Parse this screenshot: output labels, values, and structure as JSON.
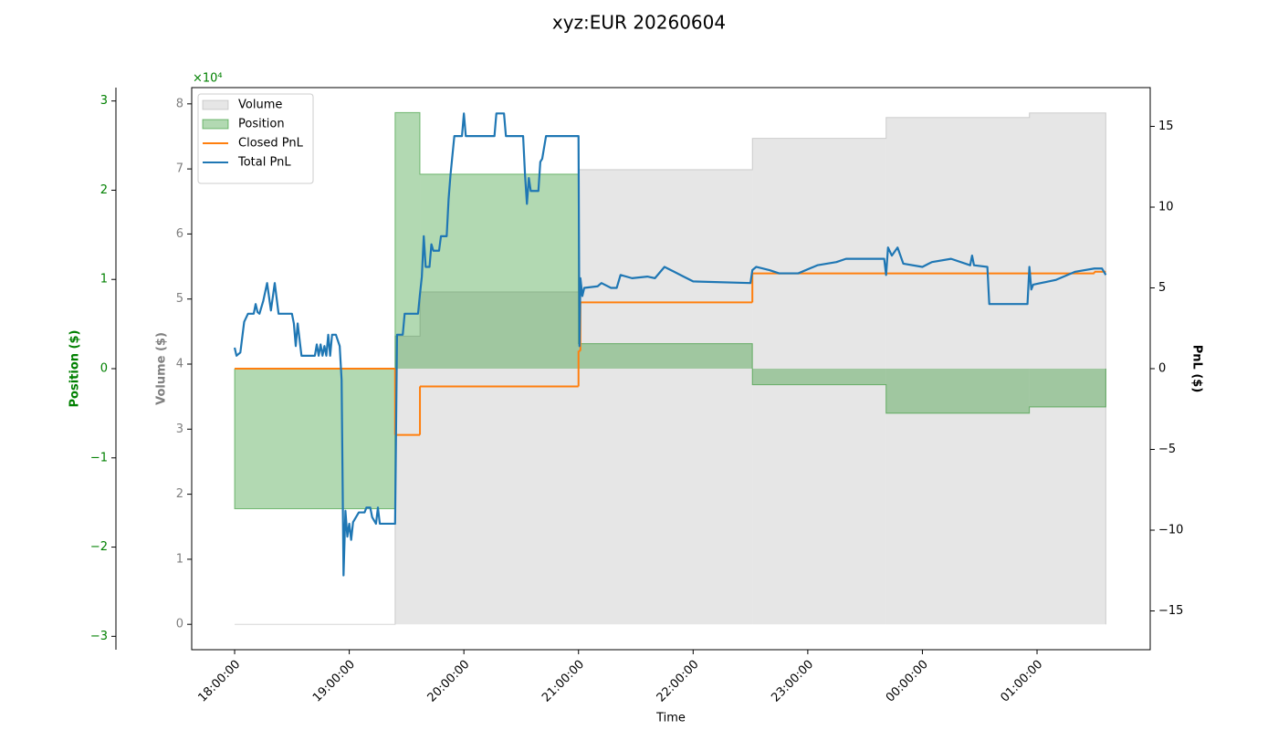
{
  "chart_data": {
    "type": "line",
    "title": "xyz:EUR 20260604",
    "x_label": "Time",
    "xlim": [
      "17:37:32",
      "01:59:14"
    ],
    "xticks": [
      "18:00:00",
      "19:00:00",
      "20:00:00",
      "21:00:00",
      "22:00:00",
      "23:00:00",
      "00:00:00",
      "01:00:00"
    ],
    "legend": "upper left",
    "axes": [
      {
        "label": "Position ($)",
        "color": "green",
        "ylim": [
          -3.15,
          3.15
        ],
        "offset_text": "×10⁴",
        "yticks": [
          {
            "value": -3,
            "label": "−3"
          },
          {
            "value": -2,
            "label": "−2"
          },
          {
            "value": -1,
            "label": "−1"
          },
          0,
          1,
          2,
          3
        ]
      },
      {
        "label": "Volume ($)",
        "color": "gray",
        "ylim": [
          -0.39,
          8.25
        ],
        "yticks": [
          0,
          1,
          2,
          3,
          4,
          5,
          6,
          7,
          8
        ]
      },
      {
        "label": "PnL ($)",
        "color": "black",
        "ylim": [
          -17.4,
          17.4
        ],
        "yticks": [
          {
            "value": -15,
            "label": "−15"
          },
          {
            "value": -10,
            "label": "−10"
          },
          {
            "value": -5,
            "label": "−5"
          },
          0,
          5,
          10,
          15
        ]
      }
    ],
    "series": [
      {
        "name": "Volume",
        "kind": "step-fill",
        "axis": 1,
        "color": "gray",
        "alpha": 0.2,
        "x": [
          "18:00:00",
          "19:24:00",
          "19:37:00",
          "21:00:00",
          "22:31:00",
          "23:41:00",
          "00:56:00",
          "01:36:00"
        ],
        "values": [
          0,
          4.43,
          5.11,
          6.99,
          7.47,
          7.79,
          7.86,
          7.86
        ]
      },
      {
        "name": "Position",
        "kind": "step-fill",
        "axis": 0,
        "color": "green",
        "alpha": 0.3,
        "x": [
          "18:00:00",
          "19:24:00",
          "19:37:00",
          "21:00:00",
          "22:31:00",
          "23:41:00",
          "00:56:00",
          "01:36:00"
        ],
        "values": [
          -1.57,
          2.87,
          2.18,
          0.28,
          -0.18,
          -0.5,
          -0.43,
          -0.43
        ]
      },
      {
        "name": "Closed PnL",
        "kind": "step-line",
        "axis": 2,
        "color": "#ff7f0e",
        "x": [
          "18:00:00",
          "19:24:00",
          "19:37:00",
          "21:00:00",
          "21:01:00",
          "22:31:00",
          "01:30:00",
          "01:36:00"
        ],
        "values": [
          0,
          -4.1,
          -1.1,
          1.1,
          4.1,
          5.9,
          6.0,
          6.0
        ]
      },
      {
        "name": "Total PnL",
        "kind": "line",
        "axis": 2,
        "color": "#1f77b4",
        "x": [
          "18:00:00",
          "18:01:00",
          "18:03:00",
          "18:05:00",
          "18:07:00",
          "18:10:00",
          "18:11:00",
          "18:12:00",
          "18:13:00",
          "18:15:00",
          "18:17:00",
          "18:19:00",
          "18:21:00",
          "18:23:00",
          "18:30:00",
          "18:31:00",
          "18:32:00",
          "18:33:00",
          "18:35:00",
          "18:42:00",
          "18:43:00",
          "18:44:00",
          "18:45:00",
          "18:46:00",
          "18:47:00",
          "18:48:00",
          "18:49:00",
          "18:50:00",
          "18:51:00",
          "18:53:00",
          "18:55:00",
          "18:56:00",
          "18:57:00",
          "18:58:00",
          "18:59:00",
          "19:00:00",
          "19:01:00",
          "19:02:00",
          "19:05:00",
          "19:08:00",
          "19:09:00",
          "19:11:00",
          "19:12:00",
          "19:14:00",
          "19:15:00",
          "19:16:00",
          "19:24:00",
          "19:25:00",
          "19:28:00",
          "19:29:00",
          "19:36:00",
          "19:37:00",
          "19:38:00",
          "19:39:00",
          "19:40:00",
          "19:42:00",
          "19:43:00",
          "19:44:00",
          "19:47:00",
          "19:48:00",
          "19:51:00",
          "19:52:00",
          "19:53:00",
          "19:55:00",
          "19:59:00",
          "20:00:00",
          "20:01:00",
          "20:16:00",
          "20:17:00",
          "20:21:00",
          "20:22:00",
          "20:31:00",
          "20:32:00",
          "20:33:00",
          "20:34:00",
          "20:35:00",
          "20:39:00",
          "20:40:00",
          "20:41:00",
          "20:43:00",
          "21:00:00",
          "21:00:30",
          "21:01:00",
          "21:02:00",
          "21:03:00",
          "21:10:00",
          "21:12:00",
          "21:17:00",
          "21:20:00",
          "21:22:00",
          "21:28:00",
          "21:36:00",
          "21:40:00",
          "21:45:00",
          "21:50:00",
          "21:55:00",
          "22:00:00",
          "22:30:00",
          "22:31:00",
          "22:33:00",
          "22:40:00",
          "22:45:00",
          "22:55:00",
          "23:05:00",
          "23:15:00",
          "23:20:00",
          "23:40:00",
          "23:41:00",
          "23:42:00",
          "23:44:00",
          "23:47:00",
          "23:50:00",
          "00:00:00",
          "00:05:00",
          "00:15:00",
          "00:25:00",
          "00:26:00",
          "00:27:00",
          "00:34:00",
          "00:35:00",
          "00:55:00",
          "00:56:00",
          "00:57:00",
          "00:58:00",
          "01:10:00",
          "01:20:00",
          "01:30:00",
          "01:34:00",
          "01:36:00"
        ],
        "values": [
          1.3,
          0.8,
          1.0,
          2.9,
          3.4,
          3.4,
          4.0,
          3.5,
          3.4,
          4.2,
          5.3,
          3.6,
          5.3,
          3.4,
          3.4,
          2.8,
          1.4,
          2.8,
          0.8,
          0.8,
          1.5,
          0.8,
          1.5,
          0.8,
          1.4,
          0.8,
          2.1,
          0.8,
          2.1,
          2.1,
          1.4,
          -0.7,
          -12.8,
          -8.8,
          -10.4,
          -9.6,
          -10.6,
          -9.5,
          -8.9,
          -8.9,
          -8.6,
          -8.6,
          -9.2,
          -9.6,
          -8.6,
          -9.6,
          -9.6,
          2.1,
          2.1,
          3.4,
          3.4,
          4.6,
          5.7,
          8.2,
          6.3,
          6.3,
          7.7,
          7.3,
          7.3,
          8.2,
          8.2,
          10.5,
          12.0,
          14.4,
          14.4,
          15.8,
          14.4,
          14.4,
          15.8,
          15.8,
          14.4,
          14.4,
          12.0,
          10.2,
          11.8,
          11.0,
          11.0,
          12.8,
          13.0,
          14.4,
          14.4,
          1.4,
          5.6,
          4.5,
          5.0,
          5.1,
          5.3,
          5.0,
          5.0,
          5.8,
          5.6,
          5.7,
          5.6,
          6.3,
          6.0,
          5.7,
          5.4,
          5.3,
          6.1,
          6.3,
          6.1,
          5.9,
          5.9,
          6.4,
          6.6,
          6.8,
          6.8,
          5.8,
          7.5,
          7.0,
          7.5,
          6.5,
          6.3,
          6.6,
          6.8,
          6.4,
          7.0,
          6.4,
          6.3,
          4.0,
          4.0,
          6.3,
          4.9,
          5.2,
          5.5,
          6.0,
          6.2,
          6.2,
          5.8
        ]
      }
    ]
  }
}
